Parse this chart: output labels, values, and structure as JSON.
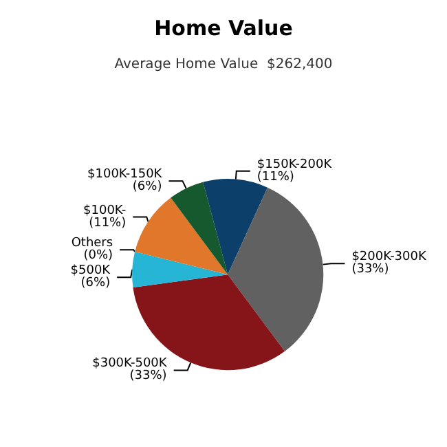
{
  "chart_data": {
    "type": "pie",
    "title": "Home Value",
    "subtitle": "Average Home Value  $262,400",
    "categories": [
      "$150K-200K",
      "$200K-300K",
      "$300K-500K",
      "$500K",
      "Others",
      "$100K-",
      "$100K-150K"
    ],
    "values": [
      11,
      33,
      33,
      6,
      0,
      11,
      6
    ],
    "colors": [
      "#0d3f6b",
      "#616161",
      "#851518",
      "#27b5d6",
      "#8e44ad",
      "#e0772a",
      "#17592f"
    ],
    "value_labels": [
      "(11%)",
      "(33%)",
      "(33%)",
      "(6%)",
      "(0%)",
      "(11%)",
      "(6%)"
    ]
  }
}
